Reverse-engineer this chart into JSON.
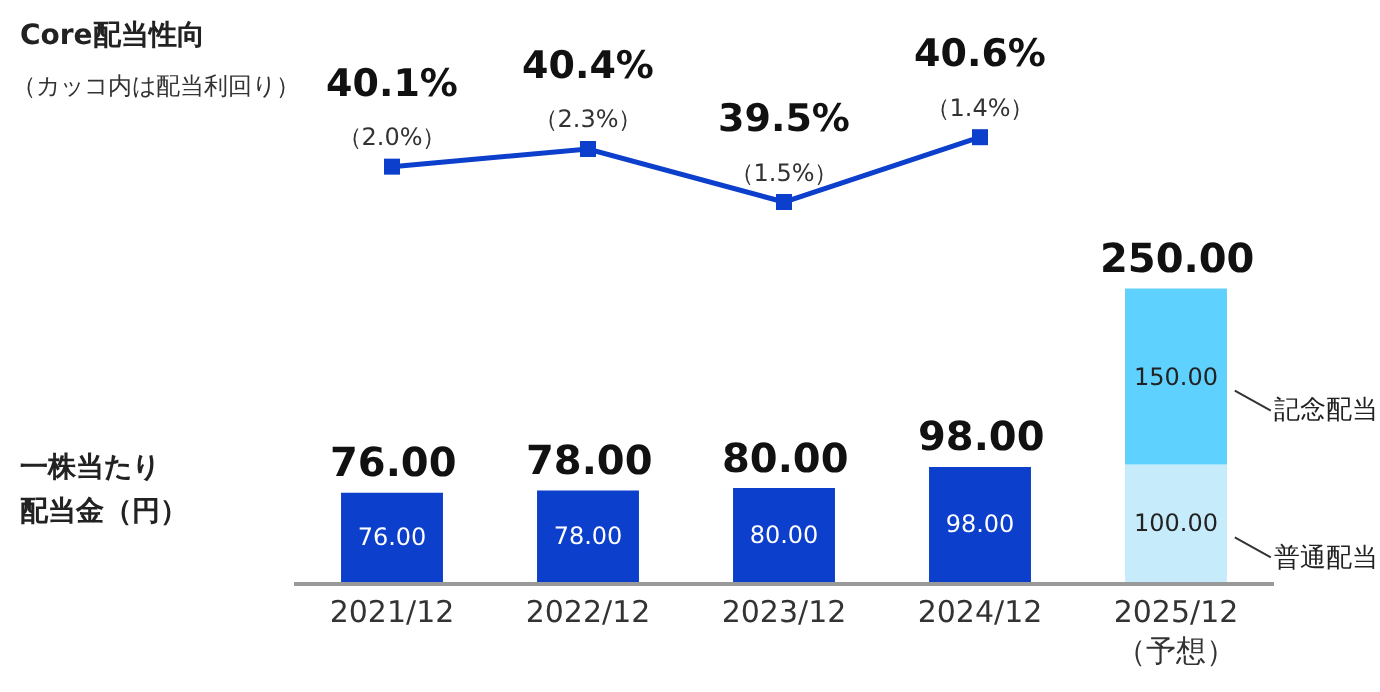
{
  "chart_data": [
    {
      "type": "line",
      "title": "Core配当性向",
      "subtitle": "（カッコ内は配当利回り）",
      "categories": [
        null,
        null,
        null,
        null,
        null
      ],
      "series": [
        {
          "color": "#0b3fcc",
          "values": [
            40.1,
            40.4,
            39.5,
            40.6,
            null
          ],
          "value_labels": [
            "40.1%\n（2.0%）",
            "40.4%\n（2.3%）",
            "39.5%\n（1.5%）",
            "40.6%\n（1.4%）",
            null
          ]
        }
      ],
      "marker": "square",
      "tick_labels": false
    },
    {
      "type": "bar",
      "stacked": true,
      "ylabel": "一株当たり配当金（円）",
      "categories": [
        "2021/12",
        "2022/12",
        "2023/12",
        "2024/12",
        "2025/12\n（予想）"
      ],
      "series": [
        {
          "name": "普通配当",
          "colors": [
            "#0b3fcc",
            "#0b3fcc",
            "#0b3fcc",
            "#0b3fcc",
            "#c6ecfc"
          ],
          "values": [
            76,
            78,
            80,
            98,
            100
          ],
          "value_labels": [
            "76.00",
            "78.00",
            "80.00",
            "98.00",
            "100.00"
          ]
        },
        {
          "name": "記念配当",
          "color": "#5fd1fe",
          "values": [
            null,
            null,
            null,
            null,
            150
          ],
          "value_labels": [
            null,
            null,
            null,
            null,
            "150.00"
          ]
        }
      ],
      "totals": [
        "76.00",
        "78.00",
        "80.00",
        "98.00",
        "250.00"
      ],
      "tick_labels": "x"
    }
  ]
}
